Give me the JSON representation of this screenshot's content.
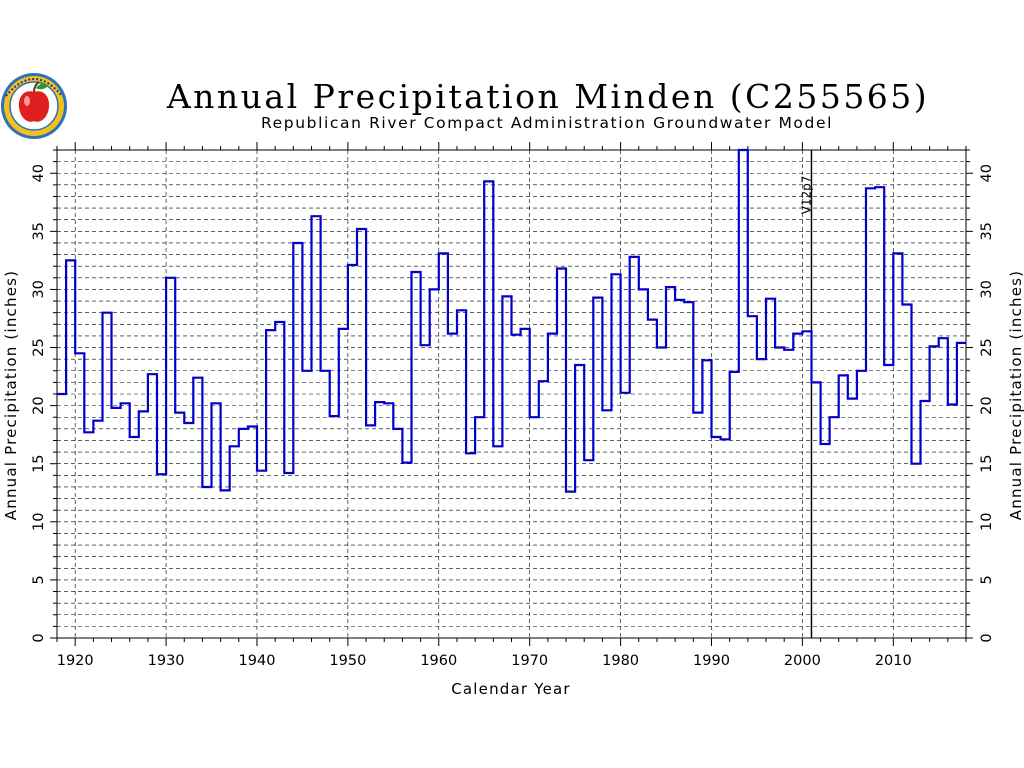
{
  "chart_data": {
    "type": "line",
    "style": "step",
    "title": "Annual Precipitation Minden (C255565)",
    "subtitle": "Republican River Compact Administration Groundwater Model",
    "xlabel": "Calendar Year",
    "ylabel": "Annual Precipitation (inches)",
    "ylabel_right": "Annual Precipitation (inches)",
    "xlim": [
      1918,
      2018
    ],
    "ylim": [
      0,
      42
    ],
    "x_ticks": [
      "1920",
      "1930",
      "1940",
      "1950",
      "1960",
      "1970",
      "1980",
      "1990",
      "2000",
      "2010"
    ],
    "y_ticks": [
      "0",
      "5",
      "10",
      "15",
      "20",
      "25",
      "30",
      "35",
      "40"
    ],
    "grid": true,
    "line_color": "#0000cc",
    "annotations": [
      {
        "x": 2001,
        "label": "V12p7"
      }
    ],
    "series": [
      {
        "x": [
          1918,
          1919,
          1920,
          1921,
          1922,
          1923,
          1924,
          1925,
          1926,
          1927,
          1928,
          1929,
          1930,
          1931,
          1932,
          1933,
          1934,
          1935,
          1936,
          1937,
          1938,
          1939,
          1940,
          1941,
          1942,
          1943,
          1944,
          1945,
          1946,
          1947,
          1948,
          1949,
          1950,
          1951,
          1952,
          1953,
          1954,
          1955,
          1956,
          1957,
          1958,
          1959,
          1960,
          1961,
          1962,
          1963,
          1964,
          1965,
          1966,
          1967,
          1968,
          1969,
          1970,
          1971,
          1972,
          1973,
          1974,
          1975,
          1976,
          1977,
          1978,
          1979,
          1980,
          1981,
          1982,
          1983,
          1984,
          1985,
          1986,
          1987,
          1988,
          1989,
          1990,
          1991,
          1992,
          1993,
          1994,
          1995,
          1996,
          1997,
          1998,
          1999,
          2000,
          2001,
          2002,
          2003,
          2004,
          2005,
          2006,
          2007,
          2008,
          2009,
          2010,
          2011,
          2012,
          2013,
          2014,
          2015,
          2016,
          2017
        ],
        "values": [
          21.0,
          32.5,
          24.5,
          17.7,
          18.7,
          28.0,
          19.8,
          20.2,
          17.3,
          19.5,
          22.7,
          14.1,
          31.0,
          19.4,
          18.5,
          22.4,
          13.0,
          20.2,
          12.7,
          16.5,
          18.0,
          18.2,
          14.4,
          26.5,
          27.2,
          14.2,
          34.0,
          23.0,
          36.3,
          23.0,
          19.1,
          26.6,
          32.1,
          35.2,
          18.3,
          20.3,
          20.2,
          18.0,
          15.1,
          31.5,
          25.2,
          30.0,
          33.1,
          26.2,
          28.2,
          15.9,
          19.0,
          39.3,
          16.5,
          29.4,
          26.1,
          26.6,
          19.0,
          22.1,
          26.2,
          31.8,
          12.6,
          23.5,
          15.3,
          29.3,
          19.6,
          31.3,
          21.1,
          32.8,
          30.0,
          27.4,
          25.0,
          30.2,
          29.1,
          28.9,
          19.4,
          23.9,
          17.3,
          17.1,
          22.9,
          42.0,
          27.7,
          24.0,
          29.2,
          25.0,
          24.8,
          26.2,
          26.4,
          22.0,
          16.7,
          19.0,
          22.6,
          20.6,
          23.0,
          38.7,
          38.8,
          23.5,
          33.1,
          28.7,
          15.0,
          20.4,
          25.1,
          25.8,
          20.1,
          25.4
        ]
      }
    ]
  }
}
